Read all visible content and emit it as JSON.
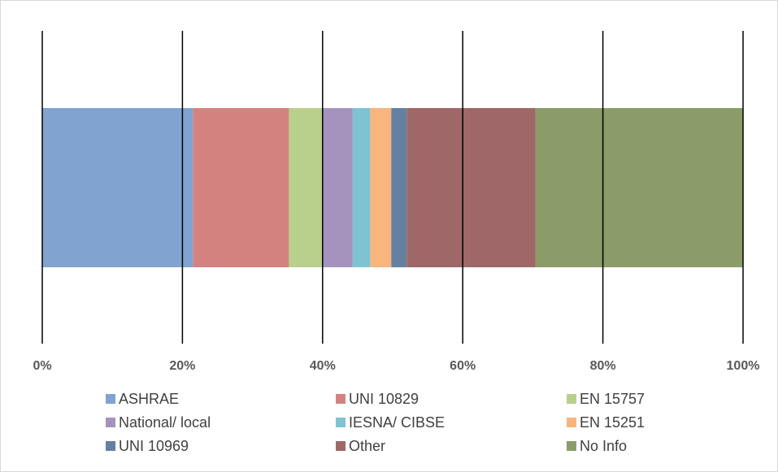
{
  "chart_data": {
    "type": "bar",
    "orientation": "horizontal",
    "stacked": true,
    "categories": [
      null
    ],
    "series": [
      {
        "name": "ASHRAE",
        "color": "#81a3cf",
        "values": [
          21.5
        ]
      },
      {
        "name": "UNI 10829",
        "color": "#d48280",
        "values": [
          13.7
        ]
      },
      {
        "name": "EN 15757",
        "color": "#b9d08c",
        "values": [
          4.7
        ]
      },
      {
        "name": "National/ local",
        "color": "#a593be",
        "values": [
          4.4
        ]
      },
      {
        "name": "IESNA/ CIBSE",
        "color": "#7fc3d3",
        "values": [
          2.5
        ]
      },
      {
        "name": "EN 15251",
        "color": "#f9b57e",
        "values": [
          3.0
        ]
      },
      {
        "name": "UNI 10969",
        "color": "#6680a0",
        "values": [
          2.2
        ]
      },
      {
        "name": "Other",
        "color": "#9e6868",
        "values": [
          18.4
        ]
      },
      {
        "name": "No Info",
        "color": "#8b9c68",
        "values": [
          29.6
        ]
      }
    ],
    "xlim": [
      0,
      100
    ],
    "xticks": [
      {
        "value": 0,
        "label": "0%"
      },
      {
        "value": 20,
        "label": "20%"
      },
      {
        "value": 40,
        "label": "40%"
      },
      {
        "value": 60,
        "label": "60%"
      },
      {
        "value": 80,
        "label": "80%"
      },
      {
        "value": 100,
        "label": "100%"
      }
    ],
    "grid": true,
    "legend": "bottom"
  }
}
